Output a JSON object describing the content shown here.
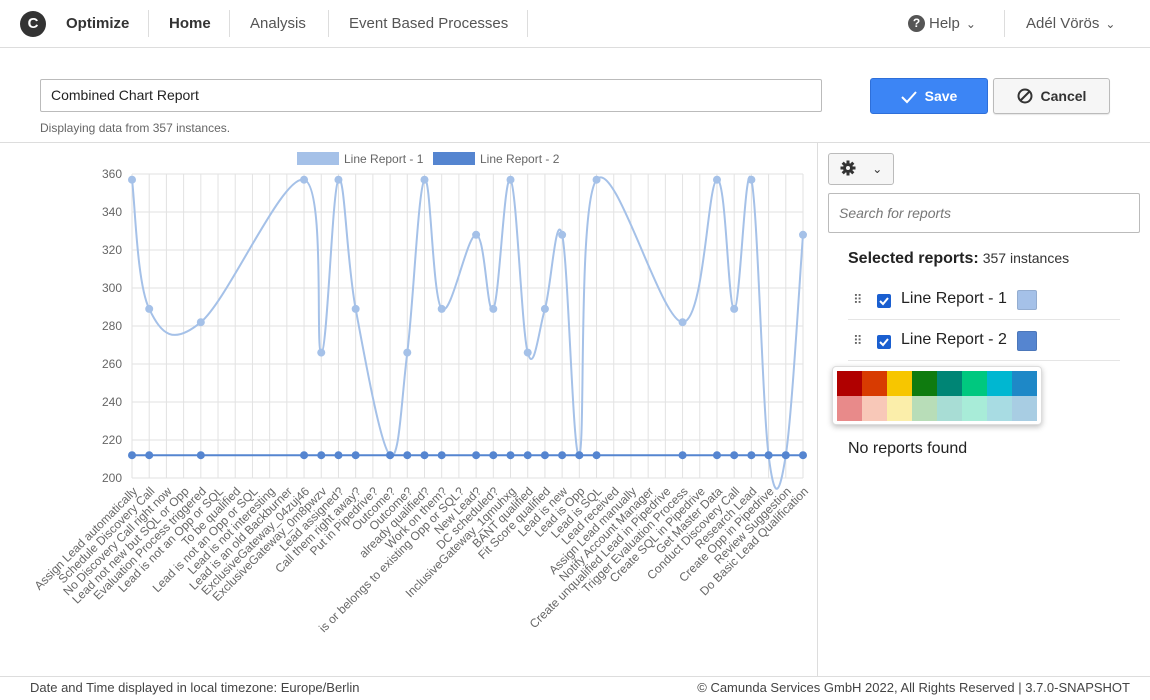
{
  "header": {
    "logo_letter": "C",
    "brand": "Optimize",
    "nav": [
      "Home",
      "Analysis",
      "Event Based Processes"
    ],
    "help": "Help",
    "user": "Adél Vörös"
  },
  "toolbar": {
    "report_name": "Combined Chart Report",
    "instances_note": "Displaying data from 357 instances.",
    "save_label": "Save",
    "cancel_label": "Cancel"
  },
  "panel": {
    "search_placeholder": "Search for reports",
    "selected_label": "Selected reports:",
    "selected_count": "357 instances",
    "reports": [
      {
        "label": "Line Report - 1",
        "color": "#a5c1e8",
        "checked": true
      },
      {
        "label": "Line Report - 2",
        "color": "#5585d0",
        "checked": true
      }
    ],
    "palette": [
      "#b00000",
      "#d83b01",
      "#f7c600",
      "#0f7b0f",
      "#008575",
      "#00c87f",
      "#00b7d1",
      "#1e88c7",
      "#e88a8a",
      "#f8c8b8",
      "#fbeeaa",
      "#b8ddb8",
      "#a8ddd5",
      "#a8ecd8",
      "#a8dce3",
      "#a8cde3"
    ],
    "empty_message": "No reports found"
  },
  "footer": {
    "timezone": "Date and Time displayed in local timezone: Europe/Berlin",
    "copyright": "© Camunda Services GmbH 2022, All Rights Reserved | 3.7.0-SNAPSHOT"
  },
  "chart_data": {
    "type": "line",
    "ylim": [
      200,
      360
    ],
    "yticks": [
      200,
      220,
      240,
      260,
      280,
      300,
      320,
      340,
      360
    ],
    "grid": true,
    "legend_position": "top-center",
    "categories": [
      "Assign Lead automatically",
      "Schedule Discovery Call",
      "No Discovery Call right now",
      "Lead not new but SQL or Opp",
      "Evaluation Process triggered",
      "Lead is not an Opp or SQL",
      "To be qualified",
      "Lead is not an Opp or SQL",
      "Lead is not interesting",
      "Lead is an old Backburner",
      "ExclusiveGateway_04zuj46",
      "ExclusiveGateway_0m8pwzv",
      "Lead assigned?",
      "Call them right away?",
      "Put in Pipedrive?",
      "Outcome?",
      "Outcome?",
      "already qualified?",
      "Work on them?",
      "is or belongs to existing Opp or SQL?",
      "New Lead?",
      "DC scheduled?",
      "InclusiveGateway_1qmuhxg",
      "BANT qualified",
      "Fit Score qualified",
      "Lead is new",
      "Lead is Opp",
      "Lead is SQL",
      "Lead received",
      "Assign Lead manually",
      "Notify Account Manager",
      "Create unqualified Lead in Pipedrive",
      "Trigger Evaluation Process",
      "Create SQL in Pipedrive",
      "Get Master Data",
      "Conduct Discovery Call",
      "Research Lead",
      "Create Opp in Pipedrive",
      "Review Suggestion",
      "Do Basic Lead Qualification"
    ],
    "series": [
      {
        "name": "Line Report - 1",
        "color": "#a5c1e8",
        "values": [
          357,
          289,
          null,
          null,
          282,
          null,
          null,
          null,
          null,
          null,
          357,
          266,
          357,
          289,
          null,
          212,
          266,
          357,
          289,
          null,
          328,
          289,
          357,
          266,
          289,
          328,
          212,
          357,
          null,
          null,
          null,
          null,
          282,
          null,
          357,
          289,
          357,
          212,
          212,
          328
        ]
      },
      {
        "name": "Line Report - 2",
        "color": "#5585d0",
        "values": [
          212,
          212,
          null,
          null,
          212,
          null,
          null,
          null,
          null,
          null,
          212,
          212,
          212,
          212,
          null,
          212,
          212,
          212,
          212,
          null,
          212,
          212,
          212,
          212,
          212,
          212,
          212,
          212,
          null,
          null,
          null,
          null,
          212,
          null,
          212,
          212,
          212,
          212,
          212,
          212
        ]
      }
    ]
  }
}
